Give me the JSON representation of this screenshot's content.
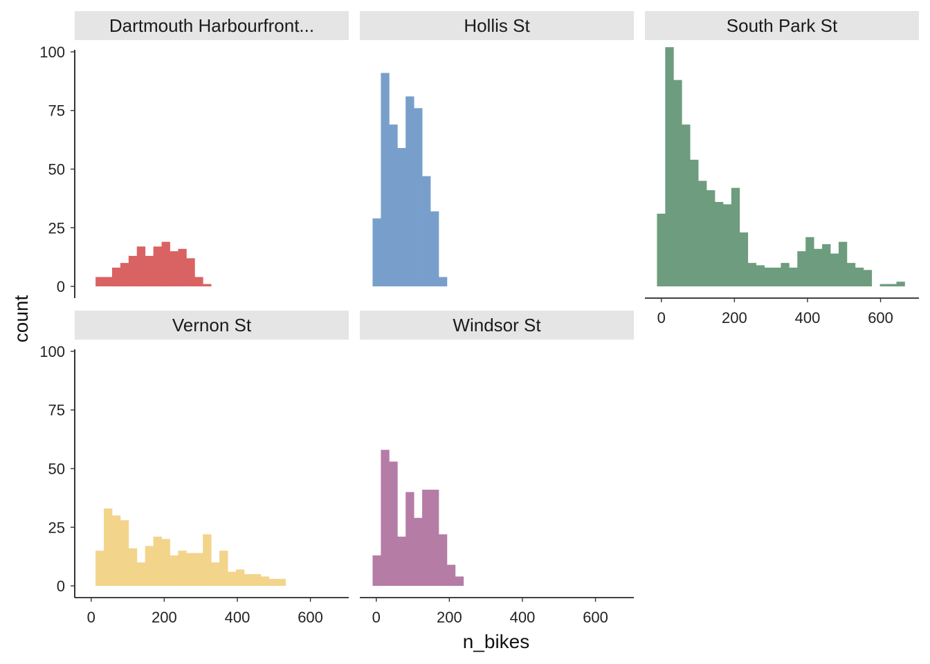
{
  "chart_data": {
    "type": "histogram",
    "xlabel": "n_bikes",
    "ylabel": "count",
    "xlim": [
      -45,
      705
    ],
    "ylim": [
      -5,
      105
    ],
    "x_ticks": [
      0,
      200,
      400,
      600
    ],
    "y_ticks": [
      0,
      25,
      50,
      75,
      100
    ],
    "grid": false,
    "facets": [
      {
        "name": "Dartmouth Harbourfront...",
        "color": "#d96263",
        "bin_start": 12,
        "bin_width": 22.6,
        "values": [
          4,
          4,
          8,
          10,
          13,
          17,
          13,
          17,
          19,
          15,
          16,
          12,
          4,
          1
        ]
      },
      {
        "name": "Hollis St",
        "color": "#789fcb",
        "bin_start": -10,
        "bin_width": 22.6,
        "values": [
          29,
          91,
          69,
          59,
          81,
          76,
          47,
          32,
          4
        ]
      },
      {
        "name": "South Park St",
        "color": "#6e9c7e",
        "bin_start": -12,
        "bin_width": 22.6,
        "values": [
          31,
          102,
          88,
          69,
          54,
          45,
          41,
          36,
          35,
          42,
          23,
          10,
          9,
          8,
          8,
          10,
          8,
          15,
          21,
          16,
          18,
          14,
          19,
          10,
          8,
          7,
          0,
          1,
          1,
          2
        ]
      },
      {
        "name": "Vernon St",
        "color": "#f2d48b",
        "bin_start": 12,
        "bin_width": 22.6,
        "values": [
          15,
          33,
          30,
          28,
          16,
          10,
          17,
          21,
          20,
          13,
          15,
          14,
          14,
          22,
          10,
          15,
          6,
          7,
          5,
          5,
          4,
          3,
          3
        ]
      },
      {
        "name": "Windsor St",
        "color": "#b57ca6",
        "bin_start": -10,
        "bin_width": 22.6,
        "values": [
          13,
          58,
          53,
          21,
          40,
          29,
          41,
          41,
          22,
          9,
          4
        ]
      }
    ]
  }
}
